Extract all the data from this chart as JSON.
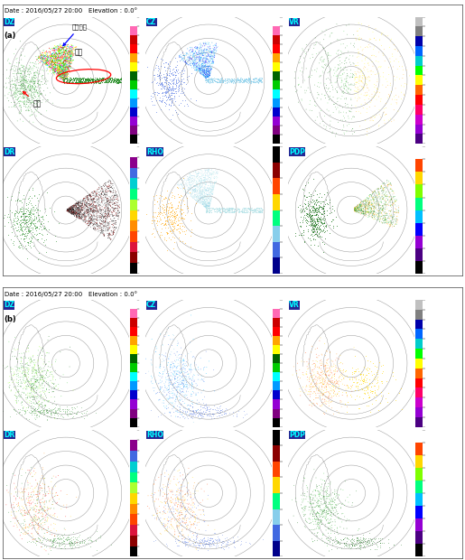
{
  "title": "Date : 2016/05/27 20:00   Elevation : 0.0°",
  "panel_labels": [
    "DZ",
    "CZ",
    "VR",
    "DR",
    "RHO",
    "PDP"
  ],
  "label_a": "(a)",
  "label_b": "(b)",
  "ann_terrain": "지형에코",
  "ann_chaff": "쉡프",
  "ann_precip": "강수",
  "dz_colors": [
    "#000000",
    "#800080",
    "#9400d3",
    "#0000cd",
    "#0099ff",
    "#00ffff",
    "#00cc00",
    "#006400",
    "#ffff00",
    "#ffa500",
    "#ff0000",
    "#cc0000",
    "#ff69b4",
    "#ffffff"
  ],
  "cz_colors": [
    "#000000",
    "#800080",
    "#9400d3",
    "#0000cd",
    "#0099ff",
    "#00ffff",
    "#00cc00",
    "#006400",
    "#ffff00",
    "#ffa500",
    "#ff0000",
    "#cc0000",
    "#ff69b4",
    "#ffffff"
  ],
  "vr_colors": [
    "#4b0082",
    "#9400d3",
    "#cc00cc",
    "#ff0066",
    "#ff0000",
    "#ff6600",
    "#ffff00",
    "#00ff00",
    "#00cccc",
    "#0066ff",
    "#0000aa",
    "#808080",
    "#c0c0c0"
  ],
  "dr_colors": [
    "#000000",
    "#8b0000",
    "#dc143c",
    "#ff4500",
    "#ff8c00",
    "#ffd700",
    "#adff2f",
    "#00ff7f",
    "#00ced1",
    "#4169e1",
    "#8b008b",
    "#ffffff"
  ],
  "rho_colors": [
    "#00008b",
    "#4169e1",
    "#87ceeb",
    "#00ff7f",
    "#ffd700",
    "#ff4500",
    "#8b0000",
    "#000000"
  ],
  "pdp_colors": [
    "#000000",
    "#4b0082",
    "#9400d3",
    "#0000ff",
    "#00bfff",
    "#00ff7f",
    "#7fff00",
    "#ffd700",
    "#ff4500",
    "#ffffff"
  ],
  "fig_w": 5.15,
  "fig_h": 6.2
}
